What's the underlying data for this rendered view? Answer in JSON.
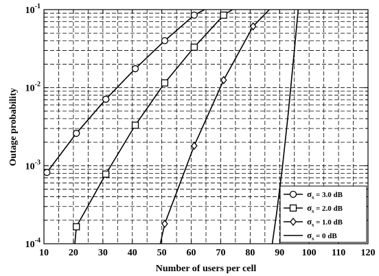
{
  "chart_data": {
    "type": "line",
    "title": "",
    "xlabel": "Number of users per cell",
    "ylabel": "Outage probability",
    "xlim": [
      10,
      120
    ],
    "ylim": [
      0.0001,
      0.1
    ],
    "yscale": "log",
    "grid": true,
    "x_ticks": [
      10,
      20,
      30,
      40,
      50,
      60,
      70,
      80,
      90,
      100,
      110,
      120
    ],
    "y_ticks": [
      {
        "value": 0.0001,
        "base": "10",
        "exp": "-4"
      },
      {
        "value": 0.001,
        "base": "10",
        "exp": "-3"
      },
      {
        "value": 0.01,
        "base": "10",
        "exp": "-2"
      },
      {
        "value": 0.1,
        "base": "10",
        "exp": "-1"
      }
    ],
    "legend_position": "bottom-right",
    "series": [
      {
        "name": "σs = 3.0 dB",
        "label_main": "σ",
        "label_sub": "s",
        "label_rest": " = 3.0 dB",
        "marker": "circle",
        "x": [
          11,
          21,
          31,
          41,
          51,
          61,
          64.5
        ],
        "y": [
          0.00082,
          0.0026,
          0.0071,
          0.0175,
          0.04,
          0.085,
          0.1
        ]
      },
      {
        "name": "σs = 2.0 dB",
        "label_main": "σ",
        "label_sub": "s",
        "label_rest": " = 2.0 dB",
        "marker": "square",
        "x": [
          20.5,
          21,
          31,
          41,
          51,
          61,
          71,
          74
        ],
        "y": [
          0.0001,
          0.000165,
          0.00078,
          0.0033,
          0.0115,
          0.033,
          0.085,
          0.1
        ]
      },
      {
        "name": "σs = 1.0 dB",
        "label_main": "σ",
        "label_sub": "s",
        "label_rest": " = 1.0 dB",
        "marker": "diamond",
        "x": [
          49.5,
          51,
          61,
          71,
          81,
          86.5
        ],
        "y": [
          0.0001,
          0.00018,
          0.0018,
          0.0125,
          0.061,
          0.1
        ]
      },
      {
        "name": "σs = 0 dB",
        "label_main": "σ",
        "label_sub": "s",
        "label_rest": " = 0 dB",
        "marker": "none",
        "x": [
          87.5,
          89,
          91,
          93,
          95,
          96.3
        ],
        "y": [
          0.0001,
          0.00025,
          0.001,
          0.005,
          0.03,
          0.1
        ]
      }
    ]
  }
}
